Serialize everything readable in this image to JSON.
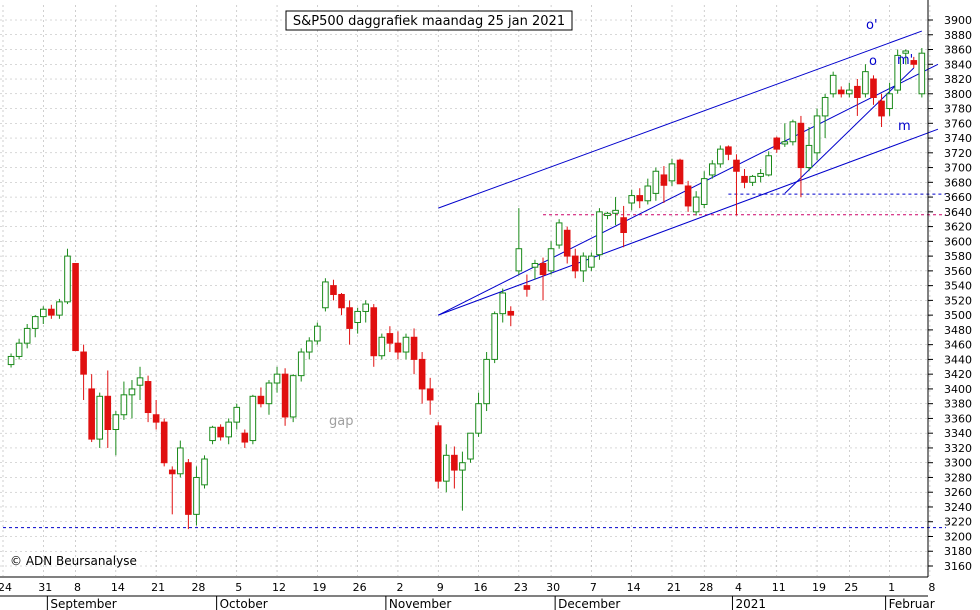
{
  "title": "S&P500 daggrafiek maandag 25 jan 2021",
  "copyright": "© ADN Beursanalyse",
  "annotations": {
    "gap": "gap",
    "o_prime": "o'",
    "o": "o",
    "m_prime": "m'",
    "m": "m"
  },
  "colors": {
    "up": "#1a8a1a",
    "down": "#e01010",
    "trendline": "#0000cc",
    "support": "#0000cc",
    "pink": "#cc0066",
    "grid": "#b0b0b0",
    "annotation": "#a0a0a0"
  },
  "chart_data": {
    "type": "candlestick",
    "title": "S&P500 daggrafiek maandag 25 jan 2021",
    "ylim": [
      3150,
      3910
    ],
    "yticks": [
      3160,
      3180,
      3200,
      3220,
      3240,
      3260,
      3280,
      3300,
      3320,
      3340,
      3360,
      3380,
      3400,
      3420,
      3440,
      3460,
      3480,
      3500,
      3520,
      3540,
      3560,
      3580,
      3600,
      3620,
      3640,
      3660,
      3680,
      3700,
      3720,
      3740,
      3760,
      3780,
      3800,
      3820,
      3840,
      3860,
      3880,
      3900
    ],
    "x_ticks": [
      {
        "label": "24",
        "i": -1
      },
      {
        "label": "31",
        "i": 4
      },
      {
        "label": "8",
        "i": 8
      },
      {
        "label": "14",
        "i": 13
      },
      {
        "label": "21",
        "i": 18
      },
      {
        "label": "28",
        "i": 23
      },
      {
        "label": "5",
        "i": 28
      },
      {
        "label": "12",
        "i": 33
      },
      {
        "label": "19",
        "i": 38
      },
      {
        "label": "26",
        "i": 43
      },
      {
        "label": "2",
        "i": 48
      },
      {
        "label": "9",
        "i": 53
      },
      {
        "label": "16",
        "i": 58
      },
      {
        "label": "23",
        "i": 63
      },
      {
        "label": "30",
        "i": 67
      },
      {
        "label": "7",
        "i": 72
      },
      {
        "label": "14",
        "i": 77
      },
      {
        "label": "21",
        "i": 82
      },
      {
        "label": "28",
        "i": 86
      },
      {
        "label": "4",
        "i": 90
      },
      {
        "label": "11",
        "i": 95
      },
      {
        "label": "19",
        "i": 100
      },
      {
        "label": "25",
        "i": 104
      },
      {
        "label": "1",
        "i": 109
      },
      {
        "label": "8",
        "i": 114
      }
    ],
    "months": [
      {
        "label": "September",
        "i": 5
      },
      {
        "label": "October",
        "i": 26
      },
      {
        "label": "November",
        "i": 47
      },
      {
        "label": "December",
        "i": 68
      },
      {
        "label": "2021",
        "i": 90
      },
      {
        "label": "Februar",
        "i": 109
      }
    ],
    "candles": [
      [
        3433,
        3448,
        3429,
        3444
      ],
      [
        3444,
        3468,
        3440,
        3462
      ],
      [
        3462,
        3488,
        3455,
        3482
      ],
      [
        3482,
        3500,
        3470,
        3498
      ],
      [
        3498,
        3512,
        3488,
        3508
      ],
      [
        3508,
        3514,
        3495,
        3500
      ],
      [
        3500,
        3522,
        3495,
        3518
      ],
      [
        3518,
        3590,
        3515,
        3580
      ],
      [
        3570,
        3570,
        3455,
        3452
      ],
      [
        3450,
        3460,
        3385,
        3420
      ],
      [
        3400,
        3420,
        3328,
        3332
      ],
      [
        3332,
        3395,
        3320,
        3390
      ],
      [
        3390,
        3425,
        3320,
        3345
      ],
      [
        3345,
        3370,
        3310,
        3365
      ],
      [
        3365,
        3410,
        3358,
        3392
      ],
      [
        3392,
        3412,
        3360,
        3400
      ],
      [
        3405,
        3430,
        3385,
        3415
      ],
      [
        3410,
        3418,
        3355,
        3368
      ],
      [
        3365,
        3385,
        3345,
        3355
      ],
      [
        3355,
        3360,
        3295,
        3300
      ],
      [
        3290,
        3295,
        3230,
        3285
      ],
      [
        3285,
        3330,
        3280,
        3320
      ],
      [
        3300,
        3305,
        3210,
        3230
      ],
      [
        3230,
        3295,
        3215,
        3280
      ],
      [
        3270,
        3310,
        3265,
        3305
      ],
      [
        3330,
        3350,
        3325,
        3348
      ],
      [
        3348,
        3352,
        3330,
        3335
      ],
      [
        3335,
        3360,
        3325,
        3355
      ],
      [
        3355,
        3380,
        3345,
        3375
      ],
      [
        3340,
        3345,
        3320,
        3328
      ],
      [
        3330,
        3392,
        3325,
        3390
      ],
      [
        3390,
        3402,
        3375,
        3380
      ],
      [
        3380,
        3412,
        3365,
        3408
      ],
      [
        3408,
        3430,
        3395,
        3420
      ],
      [
        3420,
        3428,
        3350,
        3362
      ],
      [
        3362,
        3420,
        3355,
        3418
      ],
      [
        3418,
        3455,
        3410,
        3450
      ],
      [
        3450,
        3470,
        3440,
        3465
      ],
      [
        3465,
        3490,
        3460,
        3485
      ],
      [
        3510,
        3550,
        3505,
        3545
      ],
      [
        3540,
        3548,
        3520,
        3528
      ],
      [
        3528,
        3530,
        3500,
        3510
      ],
      [
        3510,
        3520,
        3460,
        3482
      ],
      [
        3490,
        3510,
        3475,
        3505
      ],
      [
        3505,
        3520,
        3490,
        3515
      ],
      [
        3510,
        3515,
        3430,
        3445
      ],
      [
        3445,
        3475,
        3440,
        3470
      ],
      [
        3475,
        3485,
        3450,
        3462
      ],
      [
        3462,
        3478,
        3440,
        3450
      ],
      [
        3450,
        3475,
        3440,
        3470
      ],
      [
        3470,
        3482,
        3420,
        3440
      ],
      [
        3440,
        3450,
        3380,
        3400
      ],
      [
        3400,
        3415,
        3365,
        3385
      ],
      [
        3350,
        3355,
        3265,
        3275
      ],
      [
        3275,
        3325,
        3260,
        3310
      ],
      [
        3310,
        3322,
        3265,
        3290
      ],
      [
        3290,
        3315,
        3235,
        3300
      ],
      [
        3305,
        3340,
        3300,
        3340
      ],
      [
        3340,
        3395,
        3335,
        3380
      ],
      [
        3380,
        3450,
        3370,
        3440
      ],
      [
        3440,
        3505,
        3435,
        3502
      ],
      [
        3502,
        3536,
        3490,
        3530
      ],
      [
        3505,
        3512,
        3485,
        3500
      ],
      [
        3560,
        3645,
        3555,
        3590
      ],
      [
        3540,
        3555,
        3525,
        3535
      ],
      [
        3565,
        3575,
        3548,
        3570
      ],
      [
        3570,
        3578,
        3520,
        3555
      ],
      [
        3560,
        3600,
        3555,
        3590
      ],
      [
        3595,
        3630,
        3590,
        3625
      ],
      [
        3615,
        3620,
        3570,
        3580
      ],
      [
        3580,
        3590,
        3550,
        3560
      ],
      [
        3560,
        3585,
        3545,
        3580
      ],
      [
        3565,
        3585,
        3560,
        3580
      ],
      [
        3582,
        3645,
        3575,
        3640
      ],
      [
        3635,
        3640,
        3630,
        3638
      ],
      [
        3638,
        3660,
        3622,
        3642
      ],
      [
        3632,
        3648,
        3592,
        3612
      ],
      [
        3652,
        3670,
        3642,
        3662
      ],
      [
        3662,
        3672,
        3645,
        3655
      ],
      [
        3655,
        3685,
        3650,
        3675
      ],
      [
        3665,
        3700,
        3655,
        3695
      ],
      [
        3690,
        3702,
        3652,
        3676
      ],
      [
        3682,
        3712,
        3675,
        3705
      ],
      [
        3710,
        3712,
        3680,
        3678
      ],
      [
        3675,
        3682,
        3640,
        3648
      ],
      [
        3640,
        3668,
        3635,
        3660
      ],
      [
        3650,
        3695,
        3645,
        3685
      ],
      [
        3690,
        3710,
        3685,
        3705
      ],
      [
        3705,
        3730,
        3700,
        3725
      ],
      [
        3728,
        3730,
        3710,
        3718
      ],
      [
        3710,
        3718,
        3635,
        3695
      ],
      [
        3688,
        3698,
        3672,
        3680
      ],
      [
        3680,
        3690,
        3675,
        3688
      ],
      [
        3688,
        3698,
        3680,
        3692
      ],
      [
        3690,
        3722,
        3688,
        3716
      ],
      [
        3740,
        3742,
        3720,
        3725
      ],
      [
        3732,
        3760,
        3728,
        3735
      ],
      [
        3735,
        3765,
        3730,
        3762
      ],
      [
        3760,
        3770,
        3660,
        3700
      ],
      [
        3700,
        3755,
        3695,
        3730
      ],
      [
        3720,
        3780,
        3710,
        3770
      ],
      [
        3770,
        3800,
        3740,
        3795
      ],
      [
        3800,
        3830,
        3795,
        3825
      ],
      [
        3805,
        3810,
        3795,
        3800
      ],
      [
        3800,
        3815,
        3795,
        3805
      ],
      [
        3810,
        3820,
        3770,
        3795
      ],
      [
        3800,
        3840,
        3795,
        3830
      ],
      [
        3820,
        3825,
        3785,
        3795
      ],
      [
        3790,
        3800,
        3755,
        3770
      ],
      [
        3780,
        3815,
        3770,
        3800
      ],
      [
        3805,
        3860,
        3800,
        3852
      ],
      [
        3855,
        3860,
        3840,
        3858
      ],
      [
        3845,
        3850,
        3835,
        3840
      ],
      [
        3800,
        3862,
        3795,
        3855
      ]
    ],
    "lines": [
      {
        "name": "o'",
        "from": [
          53,
          3645
        ],
        "to": [
          113,
          3885
        ]
      },
      {
        "name": "o",
        "from": [
          96,
          3665
        ],
        "to": [
          112,
          3835
        ]
      },
      {
        "name": "m'",
        "from": [
          53,
          3500
        ],
        "to": [
          115,
          3840
        ]
      },
      {
        "name": "m",
        "from": [
          53,
          3500
        ],
        "to": [
          115,
          3752
        ]
      }
    ],
    "support_lines": [
      {
        "y": 3212,
        "from": -1,
        "to": 116,
        "color": "blue"
      },
      {
        "y": 3664,
        "from": 89,
        "to": 116,
        "color": "blue"
      },
      {
        "y": 3636,
        "from": 66,
        "to": 116,
        "color": "pink"
      }
    ]
  }
}
